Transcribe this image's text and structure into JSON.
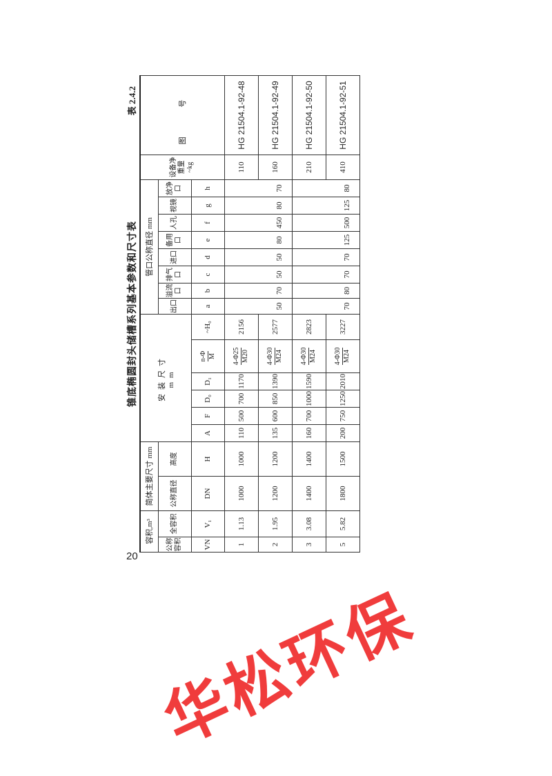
{
  "title": "锥底椭圆封头储槽系列基本参数和尺寸表",
  "table_no": "表 2.4.2",
  "page_number": "20",
  "watermark": "华松环保",
  "header": {
    "volume_group": "容积,m³",
    "shell_group": "简体主要尺寸 mm",
    "install_group": "安装尺寸\nmm",
    "nozzle_group": "管口公称直径 mm",
    "weight": "设备净重量 ~kg",
    "drawing": "图 号",
    "nominal_volume": "公称容积",
    "full_volume": "全容积",
    "nominal_dia": "公称直径",
    "height": "高度",
    "outlet": "出口",
    "overflow": "溢流口",
    "vent": "排气口",
    "inlet": "进口",
    "spare": "备用口",
    "manhole": "人孔",
    "sightglass": "视镜",
    "drain": "放净口",
    "sym": {
      "VN": "VN",
      "V1": "V₁",
      "DN": "DN",
      "H": "H",
      "A": "A",
      "F": "F",
      "D0": "D₀",
      "D1": "D₁",
      "nphi_num": "n-Φ",
      "nphi_den": "M",
      "H0": "~H₀",
      "a": "a",
      "b": "b",
      "c": "c",
      "d": "d",
      "e": "e",
      "f": "f",
      "g": "g",
      "h": "h"
    }
  },
  "rows": [
    {
      "VN": "1",
      "V1": "1.13",
      "DN": "1000",
      "H": "1000",
      "A": "110",
      "F": "500",
      "D0": "700",
      "D1": "1170",
      "nphi_num": "4-Φ25",
      "nphi_den": "M20",
      "H0": "2156",
      "weight": "110",
      "drawing": "HG 21504.1-92-48"
    },
    {
      "VN": "2",
      "V1": "1.95",
      "DN": "1200",
      "H": "1200",
      "A": "135",
      "F": "600",
      "D0": "850",
      "D1": "1390",
      "nphi_num": "4-Φ30",
      "nphi_den": "M24",
      "H0": "2577",
      "weight": "160",
      "drawing": "HG 21504.1-92-49"
    },
    {
      "VN": "3",
      "V1": "3.08",
      "DN": "1400",
      "H": "1400",
      "A": "160",
      "F": "700",
      "D0": "1000",
      "D1": "1590",
      "nphi_num": "4-Φ30",
      "nphi_den": "M24",
      "H0": "2823",
      "weight": "210",
      "drawing": "HG 21504.1-92-50"
    },
    {
      "VN": "5",
      "V1": "5.82",
      "DN": "1800",
      "H": "1500",
      "A": "200",
      "F": "750",
      "D0": "1250",
      "D1": "2010",
      "nphi_num": "4-Φ30",
      "nphi_den": "M24",
      "H0": "3227",
      "weight": "410",
      "drawing": "HG 21504.1-92-51"
    }
  ],
  "nozzles": [
    {
      "a": "50",
      "b": "70",
      "c": "50",
      "d": "50",
      "e": "80",
      "f": "450",
      "g": "80",
      "h": "70"
    },
    {
      "a": "70",
      "b": "80",
      "c": "70",
      "d": "70",
      "e": "125",
      "f": "500",
      "g": "125",
      "h": "80"
    }
  ]
}
